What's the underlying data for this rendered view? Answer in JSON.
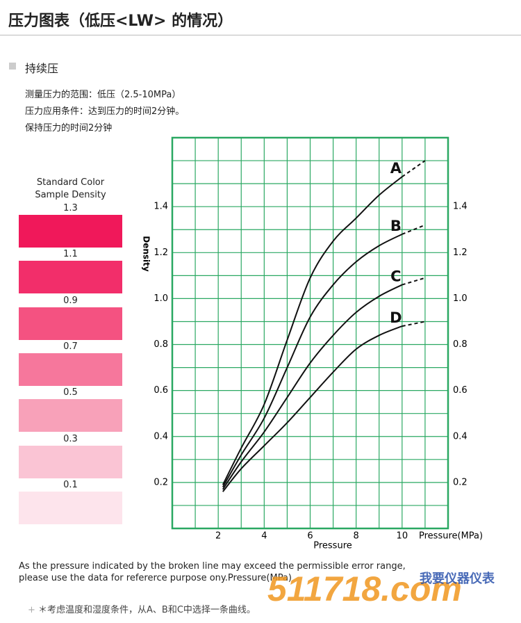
{
  "header": {
    "title": "压力图表（低压<LW> 的情况）"
  },
  "section": {
    "title": "持续压",
    "lines": [
      "测量压力的范围：低压（2.5-10MPa）",
      "压力应用条件：达到压力的时间2分钟。",
      "保持压力的时间2分钟"
    ]
  },
  "color_scale": {
    "title_lines": [
      "Standard Color",
      "Sample Density"
    ],
    "swatches": [
      {
        "label": "1.3",
        "color": "#f0185a"
      },
      {
        "label": "1.1",
        "color": "#f22e6a"
      },
      {
        "label": "0.9",
        "color": "#f45281"
      },
      {
        "label": "0.7",
        "color": "#f6779c"
      },
      {
        "label": "0.5",
        "color": "#f8a1b9"
      },
      {
        "label": "0.3",
        "color": "#fac4d4"
      },
      {
        "label": "0.1",
        "color": "#fde4ec"
      }
    ]
  },
  "chart_data": {
    "type": "line",
    "x_label": "Pressure",
    "x_unit_label": "Pressure(MPa)",
    "y_label": "Density",
    "xlim": [
      0,
      12
    ],
    "ylim": [
      0,
      1.7
    ],
    "xticks": [
      2,
      4,
      6,
      8,
      10
    ],
    "yticks": [
      0.2,
      0.4,
      0.6,
      0.8,
      {
        "value": 1,
        "label": "1.0"
      },
      1.2,
      1.4
    ],
    "grid": {
      "x_step": 1,
      "y_step": 0.1,
      "color": "#2aa862"
    },
    "right_axis": true,
    "dashed_after": 10,
    "x": [
      2.2,
      3,
      4,
      5,
      6,
      7,
      8,
      9,
      10,
      11
    ],
    "series": [
      {
        "name": "A",
        "color": "#111111",
        "values": [
          0.19,
          0.35,
          0.54,
          0.82,
          1.09,
          1.25,
          1.35,
          1.45,
          1.53,
          1.6
        ]
      },
      {
        "name": "B",
        "color": "#111111",
        "values": [
          0.18,
          0.32,
          0.48,
          0.7,
          0.92,
          1.06,
          1.16,
          1.23,
          1.28,
          1.32
        ]
      },
      {
        "name": "C",
        "color": "#111111",
        "values": [
          0.17,
          0.29,
          0.42,
          0.57,
          0.72,
          0.84,
          0.94,
          1.01,
          1.06,
          1.09
        ]
      },
      {
        "name": "D",
        "color": "#111111",
        "values": [
          0.16,
          0.26,
          0.36,
          0.46,
          0.57,
          0.68,
          0.78,
          0.84,
          0.88,
          0.9
        ]
      }
    ]
  },
  "notes": [
    "As the pressure indicated by the broken line may exceed the permissible error range,",
    "please use the data for refererce purpose ony.Pressure(MPa)"
  ],
  "footnote": "＊考虑温度和湿度条件，从A、B和C中选择一条曲线。",
  "watermark": {
    "number": "511718.com",
    "text": "我要仪器仪表"
  }
}
